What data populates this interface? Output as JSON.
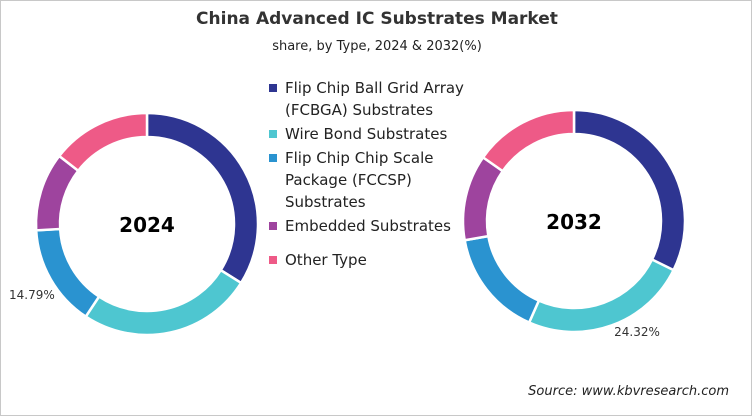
{
  "chart_data": [
    {
      "type": "pie",
      "donut": true,
      "center_label": "2024",
      "categories": [
        "Flip Chip Ball Grid Array (FCBGA) Substrates",
        "Wire Bond Substrates",
        "Flip Chip Chip Scale Package (FCCSP) Substrates",
        "Embedded Substrates",
        "Other Type"
      ],
      "values": [
        33.9,
        25.4,
        14.79,
        11.4,
        14.51
      ],
      "data_labels": [
        {
          "category": "Flip Chip Chip Scale Package (FCCSP) Substrates",
          "text": "14.79%"
        }
      ]
    },
    {
      "type": "pie",
      "donut": true,
      "center_label": "2032",
      "categories": [
        "Flip Chip Ball Grid Array (FCBGA) Substrates",
        "Wire Bond Substrates",
        "Flip Chip Chip Scale Package (FCCSP) Substrates",
        "Embedded Substrates",
        "Other Type"
      ],
      "values": [
        32.3,
        24.32,
        15.6,
        12.5,
        15.28
      ],
      "data_labels": [
        {
          "category": "Wire Bond Substrates",
          "text": "24.32%"
        }
      ]
    }
  ],
  "title": "China Advanced IC Substrates Market",
  "subtitle": "share, by Type, 2024 & 2032(%)",
  "legend": [
    {
      "label": "Flip Chip Ball Grid Array (FCBGA) Substrates",
      "color": "#2e3591"
    },
    {
      "label": "Wire Bond Substrates",
      "color": "#4ec6d0"
    },
    {
      "label": "Flip Chip Chip Scale Package (FCCSP) Substrates",
      "color": "#2a93d0"
    },
    {
      "label": "Embedded Substrates",
      "color": "#9e449e"
    },
    {
      "label": "Other Type",
      "color": "#ee5a87"
    }
  ],
  "source": "Source: www.kbvresearch.com"
}
